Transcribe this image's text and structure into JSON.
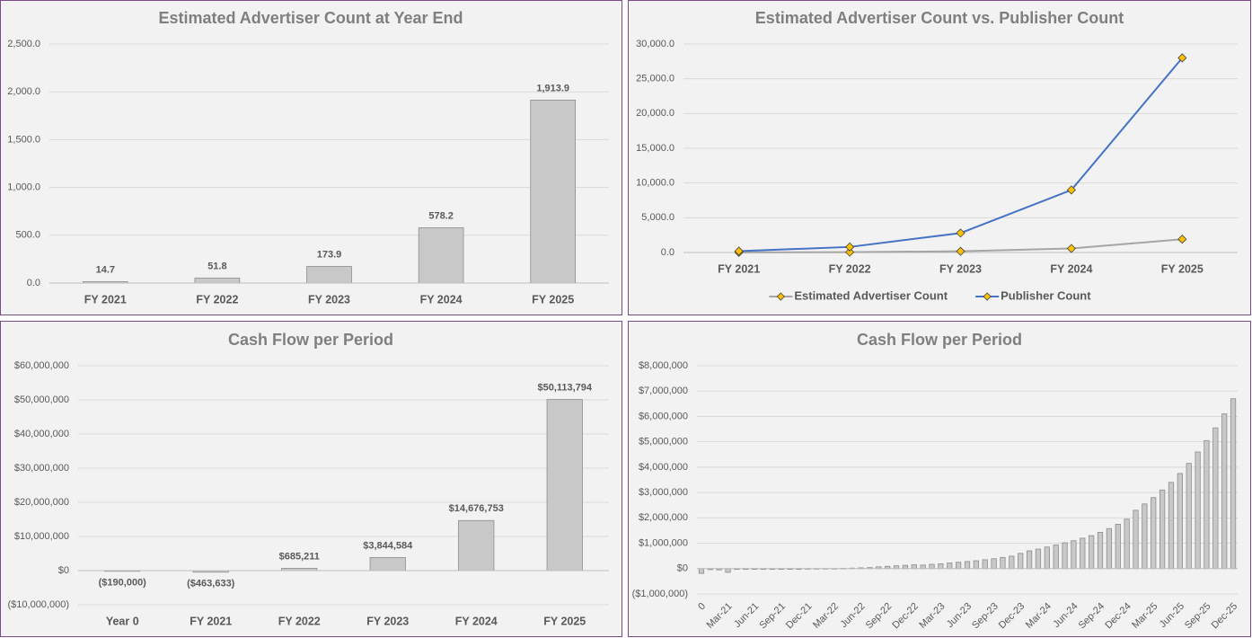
{
  "chart_data": [
    {
      "type": "bar",
      "title": "Estimated Advertiser Count at Year End",
      "categories": [
        "FY 2021",
        "FY 2022",
        "FY 2023",
        "FY 2024",
        "FY 2025"
      ],
      "values": [
        14.7,
        51.8,
        173.9,
        578.2,
        1913.9
      ],
      "value_labels": [
        "14.7",
        "51.8",
        "173.9",
        "578.2",
        "1,913.9"
      ],
      "color": "#c8c8c8",
      "ylim": [
        0,
        2500
      ],
      "yticks": [
        {
          "value": 0,
          "label": "0.0"
        },
        {
          "value": 500,
          "label": "500.0"
        },
        {
          "value": 1000,
          "label": "1,000.0"
        },
        {
          "value": 1500,
          "label": "1,500.0"
        },
        {
          "value": 2000,
          "label": "2,000.0"
        },
        {
          "value": 2500,
          "label": "2,500.0"
        }
      ],
      "grid": true
    },
    {
      "type": "line",
      "title": "Estimated Advertiser Count vs. Publisher Count",
      "categories": [
        "FY 2021",
        "FY 2022",
        "FY 2023",
        "FY 2024",
        "FY 2025"
      ],
      "series": [
        {
          "name": "Estimated Advertiser Count",
          "color": "#a5a5a5",
          "values": [
            14.7,
            51.8,
            173.9,
            578.2,
            1913.9
          ]
        },
        {
          "name": "Publisher Count",
          "color": "#4472c4",
          "values": [
            200,
            800,
            2800,
            9000,
            28000
          ]
        }
      ],
      "marker_color": "#ffc000",
      "ylim": [
        0,
        30000
      ],
      "yticks": [
        {
          "value": 0,
          "label": "0.0"
        },
        {
          "value": 5000,
          "label": "5,000.0"
        },
        {
          "value": 10000,
          "label": "10,000.0"
        },
        {
          "value": 15000,
          "label": "15,000.0"
        },
        {
          "value": 20000,
          "label": "20,000.0"
        },
        {
          "value": 25000,
          "label": "25,000.0"
        },
        {
          "value": 30000,
          "label": "30,000.0"
        }
      ],
      "grid": true,
      "legend": "bottom"
    },
    {
      "type": "bar",
      "title": "Cash Flow per Period",
      "categories": [
        "Year 0",
        "FY 2021",
        "FY 2022",
        "FY 2023",
        "FY 2024",
        "FY 2025"
      ],
      "values": [
        -190000,
        -463633,
        685211,
        3844584,
        14676753,
        50113794
      ],
      "value_labels": [
        "($190,000)",
        "($463,633)",
        "$685,211",
        "$3,844,584",
        "$14,676,753",
        "$50,113,794"
      ],
      "color": "#c8c8c8",
      "ylim": [
        -10000000,
        60000000
      ],
      "yticks": [
        {
          "value": -10000000,
          "label": "($10,000,000)"
        },
        {
          "value": 0,
          "label": "$0"
        },
        {
          "value": 10000000,
          "label": "$10,000,000"
        },
        {
          "value": 20000000,
          "label": "$20,000,000"
        },
        {
          "value": 30000000,
          "label": "$30,000,000"
        },
        {
          "value": 40000000,
          "label": "$40,000,000"
        },
        {
          "value": 50000000,
          "label": "$50,000,000"
        },
        {
          "value": 60000000,
          "label": "$60,000,000"
        }
      ],
      "grid": true
    },
    {
      "type": "bar",
      "title": "Cash Flow per Period",
      "categories": [
        "0",
        null,
        null,
        "Mar-21",
        null,
        null,
        "Jun-21",
        null,
        null,
        "Sep-21",
        null,
        null,
        "Dec-21",
        null,
        null,
        "Mar-22",
        null,
        null,
        "Jun-22",
        null,
        null,
        "Sep-22",
        null,
        null,
        "Dec-22",
        null,
        null,
        "Mar-23",
        null,
        null,
        "Jun-23",
        null,
        null,
        "Sep-23",
        null,
        null,
        "Dec-23",
        null,
        null,
        "Mar-24",
        null,
        null,
        "Jun-24",
        null,
        null,
        "Sep-24",
        null,
        null,
        "Dec-24",
        null,
        null,
        "Mar-25",
        null,
        null,
        "Jun-25",
        null,
        null,
        "Sep-25",
        null,
        null,
        "Dec-25"
      ],
      "values": [
        -190000,
        -40000,
        -50000,
        -150000,
        -30000,
        -30000,
        -30000,
        -30000,
        -30000,
        -30000,
        -30000,
        -30000,
        -20000,
        -20000,
        -10000,
        0,
        10000,
        20000,
        30000,
        40000,
        70000,
        90000,
        110000,
        130000,
        150000,
        140000,
        170000,
        190000,
        220000,
        250000,
        280000,
        310000,
        350000,
        390000,
        440000,
        490000,
        600000,
        700000,
        770000,
        850000,
        930000,
        1020000,
        1100000,
        1200000,
        1300000,
        1430000,
        1580000,
        1750000,
        1950000,
        2300000,
        2550000,
        2800000,
        3100000,
        3400000,
        3750000,
        4150000,
        4600000,
        5050000,
        5550000,
        6100000,
        6700000
      ],
      "color": "#c8c8c8",
      "ylim": [
        -1000000,
        8000000
      ],
      "yticks": [
        {
          "value": -1000000,
          "label": "($1,000,000)"
        },
        {
          "value": 0,
          "label": "$0"
        },
        {
          "value": 1000000,
          "label": "$1,000,000"
        },
        {
          "value": 2000000,
          "label": "$2,000,000"
        },
        {
          "value": 3000000,
          "label": "$3,000,000"
        },
        {
          "value": 4000000,
          "label": "$4,000,000"
        },
        {
          "value": 5000000,
          "label": "$5,000,000"
        },
        {
          "value": 6000000,
          "label": "$6,000,000"
        },
        {
          "value": 7000000,
          "label": "$7,000,000"
        },
        {
          "value": 8000000,
          "label": "$8,000,000"
        }
      ],
      "grid": true
    }
  ]
}
